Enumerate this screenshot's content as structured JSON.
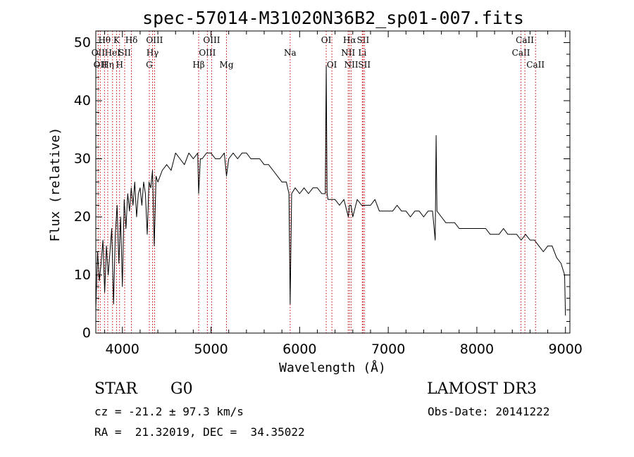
{
  "chart_data": {
    "type": "line",
    "title": "spec-57014-M31020N36B2_sp01-007.fits",
    "xlabel": "Wavelength (Å)",
    "ylabel": "Flux (relative)",
    "xlim": [
      3700,
      9050
    ],
    "ylim": [
      0,
      52
    ],
    "x_ticks": [
      4000,
      5000,
      6000,
      7000,
      8000,
      9000
    ],
    "y_ticks": [
      0,
      10,
      20,
      30,
      40,
      50
    ],
    "grid": false,
    "series": [
      {
        "color": "#000000",
        "x": [
          3700,
          3720,
          3740,
          3760,
          3780,
          3800,
          3820,
          3840,
          3860,
          3880,
          3900,
          3920,
          3940,
          3960,
          3980,
          4000,
          4020,
          4040,
          4060,
          4080,
          4100,
          4120,
          4140,
          4160,
          4180,
          4200,
          4220,
          4240,
          4260,
          4280,
          4300,
          4320,
          4340,
          4360,
          4380,
          4400,
          4450,
          4500,
          4550,
          4600,
          4650,
          4700,
          4750,
          4800,
          4850,
          4861,
          4880,
          4900,
          4950,
          5000,
          5050,
          5100,
          5150,
          5175,
          5200,
          5250,
          5300,
          5350,
          5400,
          5450,
          5500,
          5550,
          5600,
          5650,
          5700,
          5750,
          5800,
          5850,
          5880,
          5893,
          5910,
          5950,
          6000,
          6050,
          6100,
          6150,
          6200,
          6250,
          6290,
          6300,
          6310,
          6320,
          6350,
          6400,
          6450,
          6500,
          6550,
          6563,
          6580,
          6600,
          6650,
          6700,
          6750,
          6800,
          6850,
          6900,
          6950,
          7000,
          7050,
          7100,
          7150,
          7200,
          7250,
          7300,
          7350,
          7400,
          7450,
          7500,
          7530,
          7540,
          7550,
          7600,
          7650,
          7700,
          7750,
          7800,
          7850,
          7900,
          7950,
          8000,
          8050,
          8100,
          8150,
          8200,
          8250,
          8300,
          8350,
          8400,
          8450,
          8500,
          8550,
          8600,
          8650,
          8700,
          8750,
          8800,
          8850,
          8900,
          8950,
          8990,
          9000
        ],
        "y": [
          4,
          14,
          9,
          12,
          16,
          7,
          15,
          10,
          14,
          18,
          5,
          17,
          22,
          12,
          20,
          8,
          23,
          18,
          24,
          21,
          25,
          22,
          26,
          20,
          24,
          25,
          22,
          26,
          24,
          17,
          26,
          25,
          28,
          15,
          27,
          26,
          28,
          29,
          28,
          31,
          30,
          29,
          31,
          30,
          31,
          24,
          30,
          30,
          31,
          31,
          30,
          30,
          31,
          27,
          30,
          31,
          30,
          31,
          31,
          30,
          30,
          30,
          29,
          29,
          28,
          27,
          26,
          26,
          24,
          5,
          24,
          25,
          24,
          25,
          24,
          25,
          25,
          24,
          24,
          46,
          24,
          23,
          23,
          23,
          22,
          23,
          20,
          22,
          22,
          20,
          23,
          22,
          22,
          22,
          23,
          21,
          21,
          21,
          21,
          22,
          21,
          21,
          20,
          21,
          21,
          20,
          21,
          21,
          16,
          34,
          21,
          20,
          19,
          19,
          19,
          18,
          18,
          18,
          18,
          18,
          18,
          18,
          17,
          17,
          17,
          18,
          17,
          17,
          17,
          16,
          17,
          16,
          16,
          15,
          14,
          15,
          15,
          13,
          12,
          10,
          3
        ]
      }
    ],
    "line_markers": [
      {
        "wave": 3727,
        "label": "OII",
        "row": 2
      },
      {
        "wave": 3750,
        "label": "OII",
        "row": 3
      },
      {
        "wave": 3798,
        "label": "Hθ",
        "row": 1
      },
      {
        "wave": 3835,
        "label": "Hη",
        "row": 3
      },
      {
        "wave": 3889,
        "label": "HeI",
        "row": 2
      },
      {
        "wave": 3934,
        "label": "K",
        "row": 1
      },
      {
        "wave": 3968,
        "label": "H",
        "row": 3
      },
      {
        "wave": 4026,
        "label": "SII",
        "row": 2
      },
      {
        "wave": 4102,
        "label": "Hδ",
        "row": 1
      },
      {
        "wave": 4304,
        "label": "G",
        "row": 3
      },
      {
        "wave": 4340,
        "label": "Hγ",
        "row": 2
      },
      {
        "wave": 4363,
        "label": "OIII",
        "row": 1
      },
      {
        "wave": 4861,
        "label": "Hβ",
        "row": 3
      },
      {
        "wave": 4959,
        "label": "OIII",
        "row": 2
      },
      {
        "wave": 5007,
        "label": "OIII",
        "row": 1
      },
      {
        "wave": 5175,
        "label": "Mg",
        "row": 3
      },
      {
        "wave": 5893,
        "label": "Na",
        "row": 2
      },
      {
        "wave": 6300,
        "label": "OI",
        "row": 1
      },
      {
        "wave": 6364,
        "label": "OI",
        "row": 3
      },
      {
        "wave": 6548,
        "label": "NII",
        "row": 2
      },
      {
        "wave": 6563,
        "label": "Hα",
        "row": 1
      },
      {
        "wave": 6583,
        "label": "NII",
        "row": 3
      },
      {
        "wave": 6707,
        "label": "Li",
        "row": 2
      },
      {
        "wave": 6716,
        "label": "SII",
        "row": 1
      },
      {
        "wave": 6731,
        "label": "SII",
        "row": 3
      },
      {
        "wave": 8498,
        "label": "CaII",
        "row": 2
      },
      {
        "wave": 8542,
        "label": "CaII",
        "row": 1
      },
      {
        "wave": 8662,
        "label": "CaII",
        "row": 3
      }
    ],
    "marker_color": "#cc0000"
  },
  "info": {
    "class": "STAR",
    "subclass": "G0",
    "survey": "LAMOST DR3",
    "cz": "cz = -21.2 ± 97.3 km/s",
    "obs_date": "Obs-Date: 20141222",
    "coords": "RA =  21.32019, DEC =  34.35022"
  }
}
